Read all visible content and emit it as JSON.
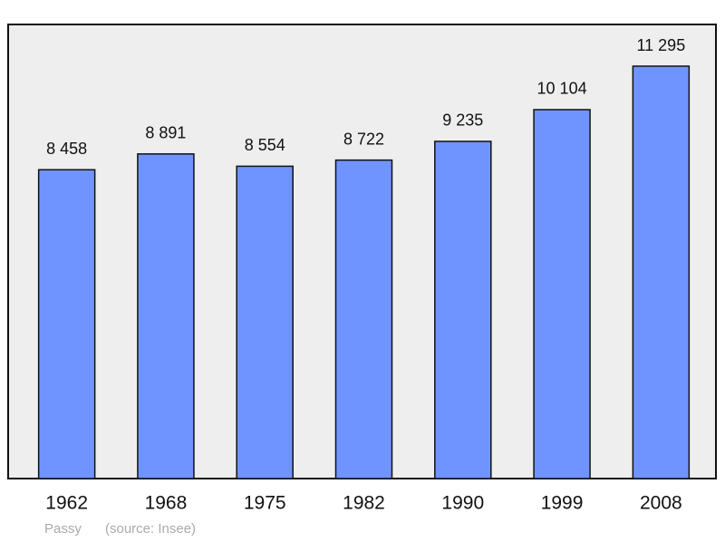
{
  "chart_data": {
    "type": "bar",
    "categories": [
      "1962",
      "1968",
      "1975",
      "1982",
      "1990",
      "1999",
      "2008"
    ],
    "values": [
      8458,
      8891,
      8554,
      8722,
      9235,
      10104,
      11295
    ],
    "value_labels": [
      "8 458",
      "8 891",
      "8 554",
      "8 722",
      "9 235",
      "10 104",
      "11 295"
    ],
    "color": "#7094ff",
    "background": "#eeeeee",
    "place": "Passy",
    "source": "(source: Insee)"
  }
}
